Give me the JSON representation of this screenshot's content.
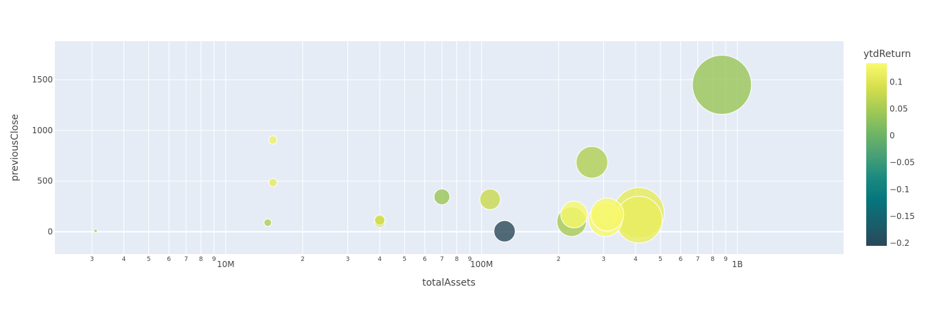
{
  "chart_data": {
    "type": "scatter",
    "title": "",
    "xlabel": "totalAssets",
    "ylabel": "previousClose",
    "colorbar_title": "ytdReturn",
    "x_scale": "log",
    "xlim": [
      2150000,
      2600000000
    ],
    "ylim": [
      -220,
      1880
    ],
    "y_ticks": [
      0,
      500,
      1000,
      1500
    ],
    "y_tick_labels": [
      "0",
      "500",
      "1000",
      "1500"
    ],
    "x_major_ticks": [
      10000000,
      100000000,
      1000000000
    ],
    "x_major_labels": [
      "10M",
      "100M",
      "1B"
    ],
    "x_minor_ticks": [
      3000000,
      4000000,
      5000000,
      6000000,
      7000000,
      8000000,
      9000000,
      20000000,
      30000000,
      40000000,
      50000000,
      60000000,
      70000000,
      80000000,
      90000000,
      200000000,
      300000000,
      400000000,
      500000000,
      600000000,
      700000000,
      800000000,
      900000000
    ],
    "x_minor_labels": [
      "3",
      "4",
      "5",
      "6",
      "7",
      "8",
      "9",
      "2",
      "3",
      "4",
      "5",
      "6",
      "7",
      "8",
      "9",
      "2",
      "3",
      "4",
      "5",
      "6",
      "7",
      "8",
      "9"
    ],
    "colorbar_ticks": [
      0.1,
      0.05,
      0,
      -0.05,
      -0.1,
      -0.15,
      -0.2
    ],
    "colorbar_tick_labels": [
      "0.1",
      "0.05",
      "0",
      "−0.05",
      "−0.1",
      "−0.15",
      "−0.2"
    ],
    "color_range": [
      -0.205,
      0.135
    ],
    "colorscale": [
      "#2a4858",
      "#185f6c",
      "#06757d",
      "#1b8a7f",
      "#4aa176",
      "#73b764",
      "#a6cb53",
      "#d8e04d",
      "#fafa6e"
    ],
    "grid": true,
    "points": [
      {
        "x": 3100000,
        "y": 10,
        "size": 5,
        "ytdReturn": 0.06
      },
      {
        "x": 14600000,
        "y": 90,
        "size": 11,
        "ytdReturn": 0.06
      },
      {
        "x": 15300000,
        "y": 905,
        "size": 12,
        "ytdReturn": 0.12
      },
      {
        "x": 15300000,
        "y": 485,
        "size": 12,
        "ytdReturn": 0.11
      },
      {
        "x": 40000000,
        "y": 115,
        "size": 15,
        "ytdReturn": 0.09
      },
      {
        "x": 40000000,
        "y": 100,
        "size": 16,
        "ytdReturn": 0.07
      },
      {
        "x": 70000000,
        "y": 345,
        "size": 23,
        "ytdReturn": 0.04
      },
      {
        "x": 108000000,
        "y": 320,
        "size": 30,
        "ytdReturn": 0.08
      },
      {
        "x": 123000000,
        "y": 5,
        "size": 31,
        "ytdReturn": -0.205
      },
      {
        "x": 230000000,
        "y": 170,
        "size": 39,
        "ytdReturn": 0.13
      },
      {
        "x": 225000000,
        "y": 100,
        "size": 43,
        "ytdReturn": 0.05
      },
      {
        "x": 270000000,
        "y": 685,
        "size": 46,
        "ytdReturn": 0.06
      },
      {
        "x": 310000000,
        "y": 170,
        "size": 48,
        "ytdReturn": 0.13
      },
      {
        "x": 305000000,
        "y": 120,
        "size": 49,
        "ytdReturn": 0.13
      },
      {
        "x": 412000000,
        "y": 120,
        "size": 68,
        "ytdReturn": 0.115
      },
      {
        "x": 412000000,
        "y": 185,
        "size": 74,
        "ytdReturn": 0.11
      },
      {
        "x": 870000000,
        "y": 1450,
        "size": 86,
        "ytdReturn": 0.04
      }
    ]
  }
}
